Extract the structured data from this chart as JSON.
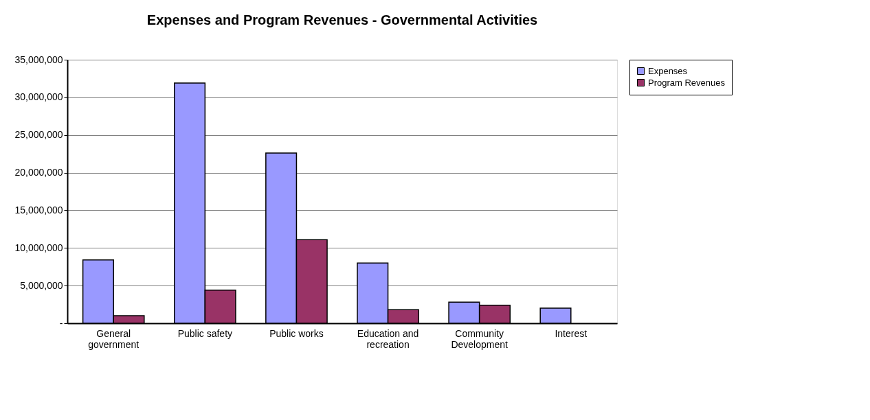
{
  "chart_data": {
    "type": "bar",
    "title": "Expenses and Program Revenues - Governmental Activities",
    "categories": [
      "General government",
      "Public safety",
      "Public works",
      "Education and recreation",
      "Community Development",
      "Interest"
    ],
    "series": [
      {
        "name": "Expenses",
        "color": "#9999ff",
        "values": [
          8400000,
          31900000,
          22600000,
          8000000,
          2800000,
          2000000
        ]
      },
      {
        "name": "Program Revenues",
        "color": "#993366",
        "values": [
          1000000,
          4400000,
          11100000,
          1800000,
          2400000,
          null
        ]
      }
    ],
    "ylim": [
      0,
      35000000
    ],
    "yticks": [
      {
        "value": 0,
        "label": "-"
      },
      {
        "value": 5000000,
        "label": "5,000,000"
      },
      {
        "value": 10000000,
        "label": "10,000,000"
      },
      {
        "value": 15000000,
        "label": "15,000,000"
      },
      {
        "value": 20000000,
        "label": "20,000,000"
      },
      {
        "value": 25000000,
        "label": "25,000,000"
      },
      {
        "value": 30000000,
        "label": "30,000,000"
      },
      {
        "value": 35000000,
        "label": "35,000,000"
      }
    ],
    "grid": "y",
    "legend": "right"
  }
}
